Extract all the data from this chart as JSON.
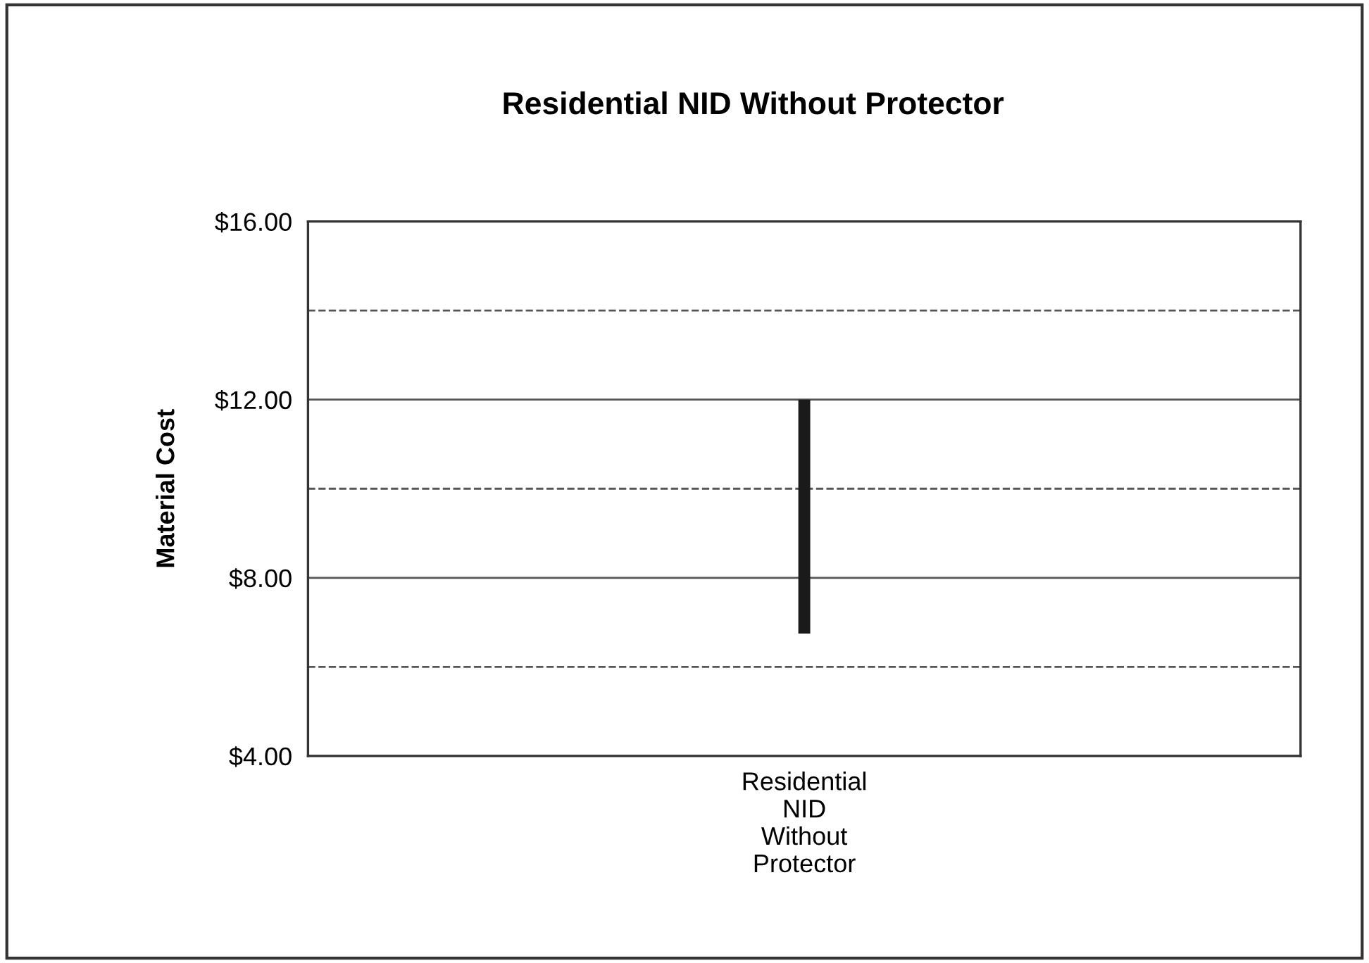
{
  "chart_data": {
    "type": "bar",
    "title": "Residential NID Without Protector",
    "ylabel": "Material Cost",
    "categories": [
      "Residential\nNID\nWithout\nProtector"
    ],
    "values": [
      5.25
    ],
    "base": [
      6.75
    ],
    "color": "#1a1a1a",
    "ylim": [
      4,
      16
    ],
    "yticks": [
      {
        "value": 4,
        "label": "$4.00"
      },
      {
        "value": 8,
        "label": "$8.00"
      },
      {
        "value": 12,
        "label": "$12.00"
      },
      {
        "value": 16,
        "label": "$16.00"
      }
    ],
    "grid": "y",
    "ref_lines": [
      {
        "axis": "y",
        "value": 6,
        "label": null,
        "line_style": "dashed",
        "color": "#555555"
      },
      {
        "axis": "y",
        "value": 10,
        "label": null,
        "line_style": "dashed",
        "color": "#555555"
      },
      {
        "axis": "y",
        "value": 14,
        "label": null,
        "line_style": "dashed",
        "color": "#555555"
      }
    ]
  }
}
